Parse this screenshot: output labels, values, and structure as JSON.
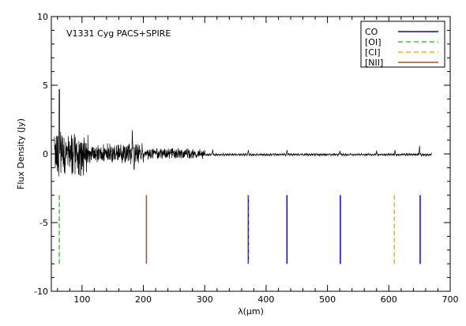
{
  "chart_data": {
    "type": "line",
    "title": "",
    "annotation": "V1331 Cyg PACS+SPIRE",
    "xlabel": "λ(μm)",
    "ylabel": "Flux Density (Jy)",
    "xlim": [
      50,
      700
    ],
    "ylim": [
      -10,
      10
    ],
    "x_ticks": [
      100,
      200,
      300,
      400,
      500,
      600,
      700
    ],
    "y_ticks": [
      -10,
      -5,
      0,
      5,
      10
    ],
    "grid": false,
    "legend_position": "top-right",
    "legend": [
      {
        "name": "CO",
        "color": "#0000ff",
        "dash": "solid"
      },
      {
        "name": "[OI]",
        "color": "#33cc33",
        "dash": "dashed"
      },
      {
        "name": "[CI]",
        "color": "#ffaa00",
        "dash": "dashed"
      },
      {
        "name": "[NII]",
        "color": "#a0522d",
        "dash": "solid"
      }
    ],
    "spectrum": {
      "name": "V1331 Cyg PACS+SPIRE",
      "x_range": [
        55,
        670
      ],
      "peak": {
        "x": 63,
        "y": 4.7
      },
      "segments": [
        {
          "x_start": 55,
          "x_end": 110,
          "noise_amplitude": 1.3
        },
        {
          "x_start": 110,
          "x_end": 200,
          "noise_amplitude": 0.55
        },
        {
          "x_start": 200,
          "x_end": 300,
          "noise_amplitude": 0.3
        },
        {
          "x_start": 300,
          "x_end": 670,
          "noise_amplitude": 0.08
        }
      ],
      "features": [
        {
          "x": 182,
          "y": 1.8
        },
        {
          "x": 185,
          "y": -1.4
        },
        {
          "x": 313,
          "y": 0.35
        },
        {
          "x": 371,
          "y": 0.3
        },
        {
          "x": 434,
          "y": 0.3
        },
        {
          "x": 520,
          "y": 0.25
        },
        {
          "x": 580,
          "y": 0.25
        },
        {
          "x": 610,
          "y": 0.3
        },
        {
          "x": 650,
          "y": 0.6
        }
      ]
    },
    "line_markers": [
      {
        "species": "[OI]",
        "x": 63,
        "y_range": [
          -3,
          -8
        ],
        "color": "#33cc33",
        "dash": "dashed"
      },
      {
        "species": "[NII]",
        "x": 205,
        "y_range": [
          -3,
          -8
        ],
        "color": "#a0522d",
        "dash": "solid"
      },
      {
        "species": "CO",
        "x": 371,
        "y_range": [
          -3,
          -8
        ],
        "color": "#0000ff",
        "dash": "solid"
      },
      {
        "species": "[CI]",
        "x": 370,
        "y_range": [
          -3,
          -8
        ],
        "color": "#ffaa00",
        "dash": "dashed"
      },
      {
        "species": "CO",
        "x": 434,
        "y_range": [
          -3,
          -8
        ],
        "color": "#0000ff",
        "dash": "solid"
      },
      {
        "species": "CO",
        "x": 521,
        "y_range": [
          -3,
          -8
        ],
        "color": "#0000ff",
        "dash": "solid"
      },
      {
        "species": "[CI]",
        "x": 609,
        "y_range": [
          -3,
          -8
        ],
        "color": "#ffaa00",
        "dash": "dashed"
      },
      {
        "species": "CO",
        "x": 651,
        "y_range": [
          -3,
          -8
        ],
        "color": "#0000ff",
        "dash": "solid"
      }
    ]
  }
}
